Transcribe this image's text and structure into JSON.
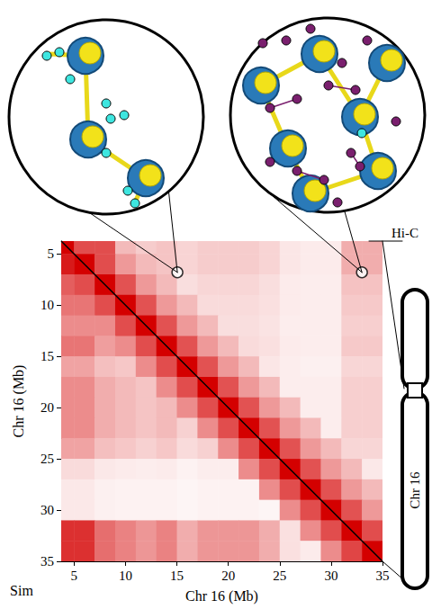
{
  "chart_data": {
    "type": "heatmap",
    "x_label": "Chr 16 (Mb)",
    "y_label": "Chr 16 (Mb)",
    "annotations": {
      "upper": "Hi-C",
      "lower": "Sim",
      "ideogram": "Chr 16"
    },
    "xlim": [
      3.75,
      35
    ],
    "ylim": [
      3.75,
      35
    ],
    "xticks": [
      5,
      10,
      15,
      20,
      25,
      30,
      35
    ],
    "yticks": [
      5,
      10,
      15,
      20,
      25,
      30,
      35
    ],
    "grid": false,
    "bins": [
      3.75,
      5,
      7,
      9,
      11,
      13,
      15,
      17,
      19,
      21,
      23,
      25,
      27,
      29,
      31,
      33,
      35
    ],
    "cells": [
      [
        1,
        0.7,
        0.7,
        0.27,
        0.2,
        0.23,
        0.17,
        0.2,
        0.2,
        0.2,
        0.17,
        0.1,
        0.08,
        0.08,
        0.32,
        0.32
      ],
      [
        0.9,
        1,
        0.7,
        0.4,
        0.27,
        0.23,
        0.17,
        0.2,
        0.2,
        0.2,
        0.17,
        0.1,
        0.08,
        0.08,
        0.32,
        0.32
      ],
      [
        0.63,
        0.7,
        1,
        0.68,
        0.4,
        0.27,
        0.13,
        0.16,
        0.16,
        0.16,
        0.13,
        0.08,
        0.07,
        0.07,
        0.24,
        0.24
      ],
      [
        0.54,
        0.54,
        0.7,
        1,
        0.68,
        0.4,
        0.27,
        0.14,
        0.14,
        0.14,
        0.12,
        0.08,
        0.07,
        0.07,
        0.21,
        0.21
      ],
      [
        0.45,
        0.45,
        0.45,
        0.7,
        1,
        0.68,
        0.4,
        0.27,
        0.13,
        0.13,
        0.11,
        0.07,
        0.07,
        0.07,
        0.19,
        0.19
      ],
      [
        0.54,
        0.54,
        0.38,
        0.45,
        0.7,
        1,
        0.68,
        0.4,
        0.27,
        0.14,
        0.12,
        0.08,
        0.07,
        0.07,
        0.21,
        0.21
      ],
      [
        0.36,
        0.36,
        0.25,
        0.22,
        0.45,
        0.7,
        1,
        0.68,
        0.4,
        0.27,
        0.1,
        0.07,
        0.06,
        0.06,
        0.16,
        0.16
      ],
      [
        0.45,
        0.45,
        0.32,
        0.27,
        0.23,
        0.45,
        0.7,
        1,
        0.68,
        0.4,
        0.27,
        0.07,
        0.07,
        0.07,
        0.19,
        0.19
      ],
      [
        0.45,
        0.45,
        0.32,
        0.27,
        0.23,
        0.27,
        0.45,
        0.7,
        1,
        0.68,
        0.4,
        0.27,
        0.07,
        0.07,
        0.19,
        0.19
      ],
      [
        0.45,
        0.45,
        0.32,
        0.27,
        0.23,
        0.27,
        0.18,
        0.45,
        0.7,
        1,
        0.68,
        0.4,
        0.27,
        0.07,
        0.19,
        0.19
      ],
      [
        0.36,
        0.36,
        0.25,
        0.22,
        0.18,
        0.22,
        0.14,
        0.18,
        0.45,
        0.7,
        1,
        0.68,
        0.4,
        0.27,
        0.16,
        0.16
      ],
      [
        0.14,
        0.14,
        0.09,
        0.08,
        0.07,
        0.08,
        0.05,
        0.07,
        0.07,
        0.45,
        0.7,
        1,
        0.68,
        0.4,
        0.27,
        0.09
      ],
      [
        0.09,
        0.09,
        0.06,
        0.05,
        0.05,
        0.05,
        0.04,
        0.05,
        0.05,
        0.05,
        0.45,
        0.7,
        1,
        0.68,
        0.4,
        0.27
      ],
      [
        0.09,
        0.09,
        0.06,
        0.05,
        0.05,
        0.05,
        0.04,
        0.05,
        0.05,
        0.05,
        0.04,
        0.45,
        0.7,
        1,
        0.68,
        0.4
      ],
      [
        0.81,
        0.81,
        0.57,
        0.49,
        0.41,
        0.49,
        0.32,
        0.41,
        0.41,
        0.41,
        0.32,
        0.12,
        0.45,
        0.7,
        1,
        0.7
      ],
      [
        0.81,
        0.81,
        0.57,
        0.49,
        0.41,
        0.49,
        0.32,
        0.41,
        0.41,
        0.41,
        0.32,
        0.12,
        0.08,
        0.45,
        0.73,
        1
      ]
    ],
    "color_range": [
      0,
      1
    ],
    "color": "#d40000",
    "insets": [
      {
        "x": 15.05,
        "y": 6.8
      },
      {
        "x": 33.0,
        "y": 6.8
      }
    ]
  }
}
